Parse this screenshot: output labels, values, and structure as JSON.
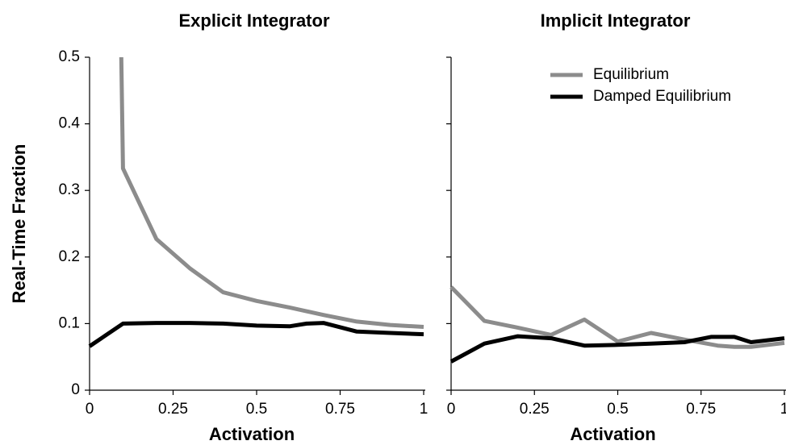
{
  "chart_data": [
    {
      "type": "line",
      "title": "Explicit Integrator",
      "x_label": "Activation",
      "y_label": "Real-Time Fraction",
      "xlim": [
        0,
        1
      ],
      "xticks": [
        0,
        0.25,
        0.5,
        0.75,
        1
      ],
      "ylim": [
        0,
        0.5
      ],
      "yticks": [
        0,
        0.1,
        0.2,
        0.3,
        0.4,
        0.5
      ],
      "series": [
        {
          "color": "#8c8c8c",
          "x": [
            0.095,
            0.1,
            0.2,
            0.3,
            0.4,
            0.5,
            0.6,
            0.7,
            0.8,
            0.9,
            1
          ],
          "values": [
            0.5,
            0.333,
            0.227,
            0.183,
            0.147,
            0.134,
            0.124,
            0.113,
            0.103,
            0.098,
            0.095
          ]
        },
        {
          "color": "#000000",
          "x": [
            0,
            0.1,
            0.2,
            0.3,
            0.4,
            0.5,
            0.6,
            0.65,
            0.7,
            0.8,
            0.9,
            1
          ],
          "values": [
            0.066,
            0.1,
            0.101,
            0.101,
            0.1,
            0.097,
            0.096,
            0.1,
            0.101,
            0.088,
            0.086,
            0.084
          ]
        }
      ]
    },
    {
      "type": "line",
      "title": "Implicit Integrator",
      "x_label": "Activation",
      "xlim": [
        0,
        1
      ],
      "xticks": [
        0,
        0.25,
        0.5,
        0.75,
        1
      ],
      "ylim": [
        0,
        0.5
      ],
      "yticks": [
        0,
        0.1,
        0.2,
        0.3,
        0.4,
        0.5
      ],
      "legend": "upper right",
      "series": [
        {
          "name": "Equilibrium",
          "color": "#8c8c8c",
          "x": [
            0,
            0.1,
            0.2,
            0.3,
            0.4,
            0.5,
            0.6,
            0.7,
            0.8,
            0.85,
            0.9,
            1
          ],
          "values": [
            0.155,
            0.104,
            0.094,
            0.083,
            0.106,
            0.073,
            0.086,
            0.076,
            0.067,
            0.065,
            0.065,
            0.071
          ]
        },
        {
          "name": "Damped Equilibrium",
          "color": "#000000",
          "x": [
            0,
            0.1,
            0.2,
            0.3,
            0.4,
            0.5,
            0.6,
            0.7,
            0.78,
            0.85,
            0.9,
            1
          ],
          "values": [
            0.043,
            0.07,
            0.081,
            0.078,
            0.067,
            0.068,
            0.07,
            0.072,
            0.08,
            0.08,
            0.072,
            0.078
          ]
        }
      ]
    }
  ]
}
